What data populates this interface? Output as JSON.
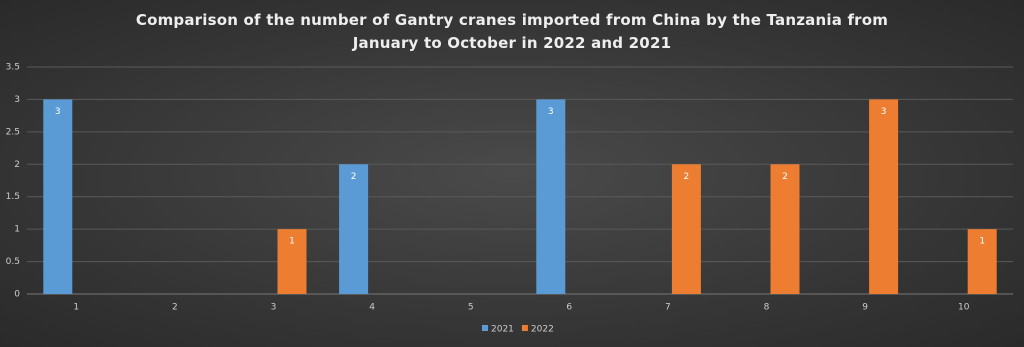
{
  "chart_data": {
    "type": "bar",
    "title": "Comparison of the number of Gantry cranes imported from China by the Tanzania from January to October in 2022 and 2021",
    "categories": [
      "1",
      "2",
      "3",
      "4",
      "5",
      "6",
      "7",
      "8",
      "9",
      "10"
    ],
    "series": [
      {
        "name": "2021",
        "color": "#5b9bd5",
        "values": [
          3,
          null,
          null,
          2,
          null,
          3,
          null,
          null,
          null,
          null
        ]
      },
      {
        "name": "2022",
        "color": "#ed7d31",
        "values": [
          null,
          null,
          1,
          null,
          null,
          null,
          2,
          2,
          3,
          1
        ]
      }
    ],
    "ylim": [
      0,
      3.5
    ],
    "yticks": [
      0,
      0.5,
      1,
      1.5,
      2,
      2.5,
      3,
      3.5
    ],
    "grid": true,
    "legend": "bottom"
  }
}
